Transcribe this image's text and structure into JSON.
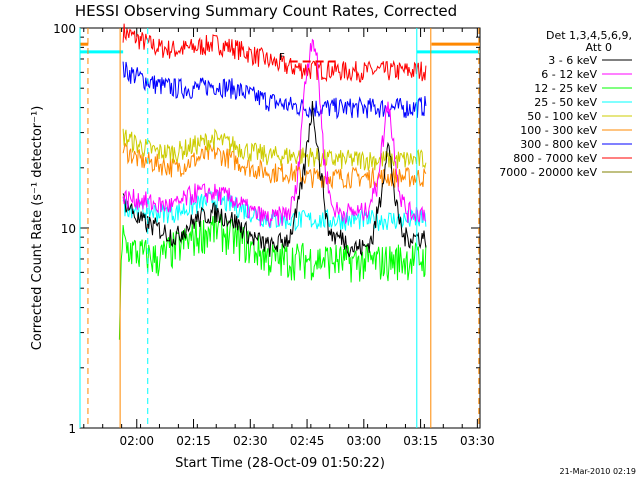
{
  "chart_data": {
    "type": "line",
    "title": "HESSI Observing Summary Count Rates, Corrected",
    "xlabel": "Start Time (28-Oct-09 01:50:22)",
    "ylabel": "Corrected Count Rate (s⁻¹ detector⁻¹)",
    "yscale": "log",
    "ylim": [
      1,
      100
    ],
    "xlim_minutes": [
      -5.4,
      100.3
    ],
    "x_ticks": [
      {
        "label": "02:00",
        "t": 9.6
      },
      {
        "label": "02:15",
        "t": 24.6
      },
      {
        "label": "02:30",
        "t": 39.6
      },
      {
        "label": "02:45",
        "t": 54.6
      },
      {
        "label": "03:00",
        "t": 69.6
      },
      {
        "label": "03:15",
        "t": 84.6
      },
      {
        "label": "03:30",
        "t": 99.6
      }
    ],
    "y_ticks": [
      {
        "label": "1",
        "v": 1
      },
      {
        "label": "10",
        "v": 10
      },
      {
        "label": "100",
        "v": 100
      }
    ],
    "legend": {
      "title_line1": "Det 1,3,4,5,6,9,",
      "title_line2": "Att 0",
      "placement": "right"
    },
    "footer_date": "21-Mar-2010 02:19",
    "flag_label": "F",
    "series": [
      {
        "name": "3 - 6 keV",
        "color": "#000000",
        "x": [
          6,
          10,
          15,
          20,
          25,
          30,
          35,
          40,
          45,
          50,
          52,
          54,
          56,
          58,
          60,
          62,
          64,
          66,
          70,
          72,
          74,
          76,
          78,
          80,
          83,
          86
        ],
        "y": [
          14,
          11,
          10,
          9,
          11,
          12,
          11,
          9,
          8,
          9,
          12,
          20,
          40,
          20,
          10,
          9,
          9,
          8,
          8,
          9,
          14,
          26,
          13,
          9,
          9,
          9
        ]
      },
      {
        "name": "6 - 12 keV",
        "color": "#ff00ff",
        "x": [
          6,
          10,
          15,
          20,
          25,
          30,
          35,
          40,
          45,
          50,
          52,
          53,
          55,
          56,
          57,
          58,
          59,
          61,
          63,
          65,
          70,
          73,
          75,
          76,
          77,
          79,
          81,
          84,
          86
        ],
        "y": [
          14,
          14,
          13,
          13,
          15,
          15,
          14,
          12,
          11,
          12,
          16,
          30,
          70,
          92,
          75,
          45,
          22,
          13,
          12,
          12,
          12,
          16,
          30,
          45,
          30,
          15,
          12,
          12,
          12
        ]
      },
      {
        "name": "12 - 25 keV",
        "color": "#00ff00",
        "x": [
          5,
          6,
          7,
          10,
          15,
          20,
          25,
          30,
          35,
          40,
          45,
          50,
          55,
          60,
          65,
          70,
          75,
          80,
          83,
          86
        ],
        "y": [
          3,
          9,
          8,
          7.5,
          7,
          8,
          9,
          10,
          9,
          8,
          7,
          7,
          7,
          7,
          6.8,
          6.8,
          6.8,
          7,
          7,
          7
        ]
      },
      {
        "name": "25 - 50 keV",
        "color": "#00ffff",
        "x": [
          6,
          10,
          15,
          20,
          25,
          30,
          35,
          40,
          45,
          50,
          55,
          60,
          65,
          70,
          75,
          80,
          83,
          86
        ],
        "y": [
          13,
          12.5,
          12,
          12,
          13,
          14,
          13,
          12,
          11,
          11,
          11,
          11,
          11,
          11,
          11,
          11,
          11,
          11
        ]
      },
      {
        "name": "50 - 100 keV",
        "color": "#cccc00",
        "x": [
          6,
          10,
          15,
          20,
          25,
          30,
          35,
          40,
          45,
          50,
          55,
          60,
          65,
          70,
          75,
          80,
          83,
          86
        ],
        "y": [
          29,
          26,
          24,
          24,
          26,
          28,
          26,
          24,
          23,
          23,
          23,
          22,
          22,
          22,
          22,
          22,
          22,
          22
        ]
      },
      {
        "name": "100 - 300 keV",
        "color": "#ff8800",
        "x": [
          6,
          10,
          15,
          20,
          25,
          30,
          35,
          40,
          45,
          50,
          55,
          60,
          65,
          70,
          75,
          80,
          83,
          86
        ],
        "y": [
          25,
          22,
          21,
          20,
          22,
          24,
          22,
          20,
          19,
          19,
          18,
          18,
          18,
          18,
          18,
          18,
          18,
          18
        ]
      },
      {
        "name": "300 - 800 keV",
        "color": "#0000ff",
        "x": [
          6,
          10,
          15,
          20,
          25,
          30,
          35,
          40,
          45,
          50,
          55,
          60,
          65,
          70,
          75,
          80,
          83,
          86
        ],
        "y": [
          62,
          57,
          52,
          50,
          50,
          52,
          50,
          46,
          43,
          41,
          40,
          40,
          40,
          40,
          40,
          40,
          40,
          41
        ]
      },
      {
        "name": "800 - 7000 keV",
        "color": "#ff0000",
        "x": [
          6,
          10,
          15,
          20,
          25,
          30,
          35,
          40,
          45,
          50,
          55,
          60,
          65,
          70,
          75,
          80,
          83,
          86
        ],
        "y": [
          96,
          88,
          80,
          78,
          80,
          84,
          80,
          74,
          68,
          64,
          62,
          62,
          61,
          61,
          61,
          61,
          61,
          62
        ]
      },
      {
        "name": "7000 - 20000 keV",
        "color": "#808000",
        "x": [],
        "y": []
      }
    ],
    "attenuator_segments": [
      {
        "color": "#ff8800",
        "x": [
          -5.4,
          -3.2
        ],
        "v": 83
      },
      {
        "color": "#00ffff",
        "x": [
          -5.4,
          6
        ],
        "v": 76
      },
      {
        "color": "#ff8800",
        "x": [
          87.5,
          100.3
        ],
        "v": 83
      },
      {
        "color": "#00ffff",
        "x": [
          83.6,
          100.3
        ],
        "v": 76
      }
    ],
    "flag_segments": [
      {
        "color": "#ff0000",
        "x": [
          50,
          62
        ],
        "v": 68
      }
    ],
    "vertical_markers": [
      {
        "color": "#00ffff",
        "t": -5.4,
        "style": "solid"
      },
      {
        "color": "#ff8800",
        "t": -3.3,
        "style": "dashed"
      },
      {
        "color": "#ff8800",
        "t": 5.2,
        "style": "solid"
      },
      {
        "color": "#00ffff",
        "t": 12.5,
        "style": "dashed"
      },
      {
        "color": "#00ffff",
        "t": 83.6,
        "style": "solid"
      },
      {
        "color": "#ff8800",
        "t": 87.3,
        "style": "solid"
      },
      {
        "color": "#ff8800",
        "t": 100,
        "style": "dashed"
      }
    ]
  }
}
